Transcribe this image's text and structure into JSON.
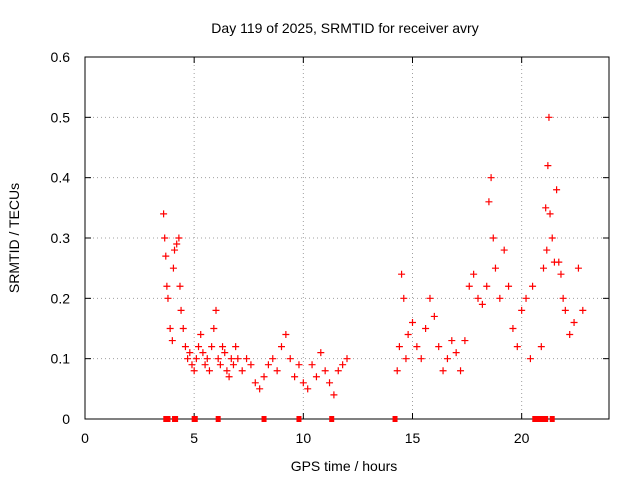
{
  "chart_data": {
    "type": "scatter",
    "title": "Day 119 of 2025, SRMTID for receiver avry",
    "xlabel": "GPS time / hours",
    "ylabel": "SRMTID / TECUs",
    "xlim": [
      0,
      24
    ],
    "ylim": [
      0,
      0.6
    ],
    "xticks": [
      0,
      5,
      10,
      15,
      20
    ],
    "yticks": [
      0,
      0.1,
      0.2,
      0.3,
      0.4,
      0.5,
      0.6
    ],
    "ytick_labels": [
      "0",
      "0.1",
      "0.2",
      "0.3",
      "0.4",
      "0.5",
      "0.6"
    ],
    "grid": true,
    "marker": "+",
    "series_color": "#ff0000",
    "series": [
      {
        "name": "SRMTID",
        "x": [
          3.6,
          3.65,
          3.7,
          3.75,
          3.8,
          3.9,
          4.0,
          4.05,
          4.1,
          4.2,
          4.3,
          4.35,
          4.4,
          4.5,
          4.6,
          4.7,
          4.8,
          4.9,
          5.0,
          5.1,
          5.2,
          5.3,
          5.4,
          5.5,
          5.6,
          5.7,
          5.8,
          5.9,
          6.0,
          6.1,
          6.2,
          6.3,
          6.4,
          6.5,
          6.6,
          6.7,
          6.8,
          6.9,
          7.0,
          7.2,
          7.4,
          7.6,
          7.8,
          8.0,
          8.2,
          8.4,
          8.6,
          8.8,
          9.0,
          9.2,
          9.4,
          9.6,
          9.8,
          10.0,
          10.2,
          10.4,
          10.6,
          10.8,
          11.0,
          11.2,
          11.4,
          11.6,
          11.8,
          12.0,
          14.3,
          14.4,
          14.5,
          14.6,
          14.7,
          14.8,
          15.0,
          15.2,
          15.4,
          15.6,
          15.8,
          16.0,
          16.2,
          16.4,
          16.6,
          16.8,
          17.0,
          17.2,
          17.4,
          17.6,
          17.8,
          18.0,
          18.2,
          18.4,
          18.5,
          18.6,
          18.7,
          18.8,
          19.0,
          19.2,
          19.4,
          19.6,
          19.8,
          20.0,
          20.2,
          20.4,
          20.5,
          20.9,
          21.0,
          21.1,
          21.15,
          21.2,
          21.25,
          21.3,
          21.4,
          21.5,
          21.6,
          21.7,
          21.8,
          21.9,
          22.0,
          22.2,
          22.4,
          22.6,
          22.8
        ],
        "y": [
          0.34,
          0.3,
          0.27,
          0.22,
          0.2,
          0.15,
          0.13,
          0.25,
          0.28,
          0.29,
          0.3,
          0.22,
          0.18,
          0.15,
          0.12,
          0.1,
          0.11,
          0.09,
          0.08,
          0.1,
          0.12,
          0.14,
          0.11,
          0.09,
          0.1,
          0.08,
          0.12,
          0.15,
          0.18,
          0.1,
          0.09,
          0.12,
          0.11,
          0.08,
          0.07,
          0.1,
          0.09,
          0.12,
          0.1,
          0.08,
          0.1,
          0.09,
          0.06,
          0.05,
          0.07,
          0.09,
          0.1,
          0.08,
          0.12,
          0.14,
          0.1,
          0.07,
          0.09,
          0.06,
          0.05,
          0.09,
          0.07,
          0.11,
          0.08,
          0.06,
          0.04,
          0.08,
          0.09,
          0.1,
          0.08,
          0.12,
          0.24,
          0.2,
          0.1,
          0.14,
          0.16,
          0.12,
          0.1,
          0.15,
          0.2,
          0.17,
          0.12,
          0.08,
          0.1,
          0.13,
          0.11,
          0.08,
          0.13,
          0.22,
          0.24,
          0.2,
          0.19,
          0.22,
          0.36,
          0.4,
          0.3,
          0.25,
          0.2,
          0.28,
          0.22,
          0.15,
          0.12,
          0.18,
          0.2,
          0.1,
          0.22,
          0.12,
          0.25,
          0.35,
          0.28,
          0.42,
          0.5,
          0.34,
          0.3,
          0.26,
          0.38,
          0.26,
          0.24,
          0.2,
          0.18,
          0.14,
          0.16,
          0.25,
          0.18
        ]
      }
    ],
    "zero_markers_x": [
      3.7,
      3.8,
      4.1,
      4.15,
      5.0,
      5.05,
      6.1,
      8.2,
      9.8,
      11.3,
      14.2,
      20.6,
      20.7,
      20.8,
      20.9,
      21.0,
      21.1,
      21.4
    ]
  }
}
